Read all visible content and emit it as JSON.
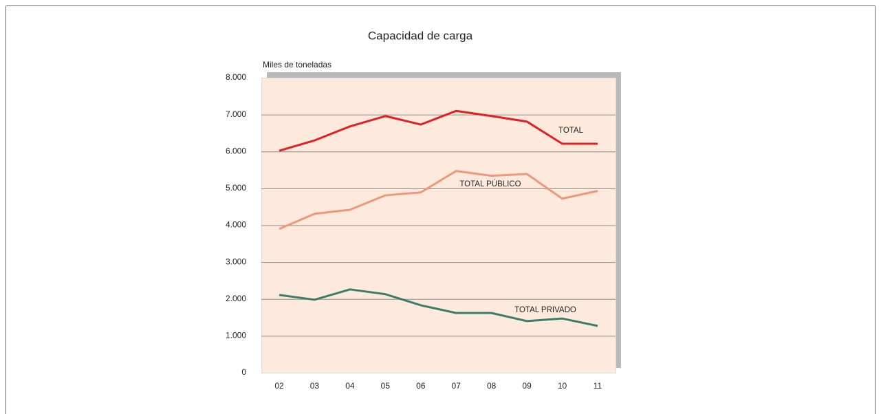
{
  "chart_data": {
    "type": "line",
    "title": "Capacidad de carga",
    "y_label": "Miles de toneladas",
    "categories": [
      "02",
      "03",
      "04",
      "05",
      "06",
      "07",
      "08",
      "09",
      "10",
      "11"
    ],
    "series": [
      {
        "name": "TOTAL",
        "color": "#e31e24",
        "values": [
          6020,
          6300,
          6680,
          6960,
          6730,
          7100,
          6960,
          6810,
          6210,
          6210
        ]
      },
      {
        "name": "TOTAL PÚBLICO",
        "color": "#f0977a",
        "values": [
          3900,
          4310,
          4420,
          4810,
          4890,
          5470,
          5340,
          5390,
          4720,
          4930
        ]
      },
      {
        "name": "TOTAL PRIVADO",
        "color": "#3a7d6a",
        "values": [
          2110,
          1980,
          2260,
          2130,
          1830,
          1620,
          1620,
          1400,
          1470,
          1270
        ]
      }
    ],
    "ylim": [
      0,
      8000
    ],
    "yticks": [
      0,
      {
        "value": 1000,
        "label": "1.000"
      },
      {
        "value": 2000,
        "label": "2.000"
      },
      {
        "value": 3000,
        "label": "3.000"
      },
      {
        "value": 4000,
        "label": "4.000"
      },
      {
        "value": 5000,
        "label": "5.000"
      },
      {
        "value": 6000,
        "label": "6.000"
      },
      {
        "value": 7000,
        "label": "7.000"
      },
      {
        "value": 8000,
        "label": "8.000"
      }
    ],
    "grid": true
  }
}
